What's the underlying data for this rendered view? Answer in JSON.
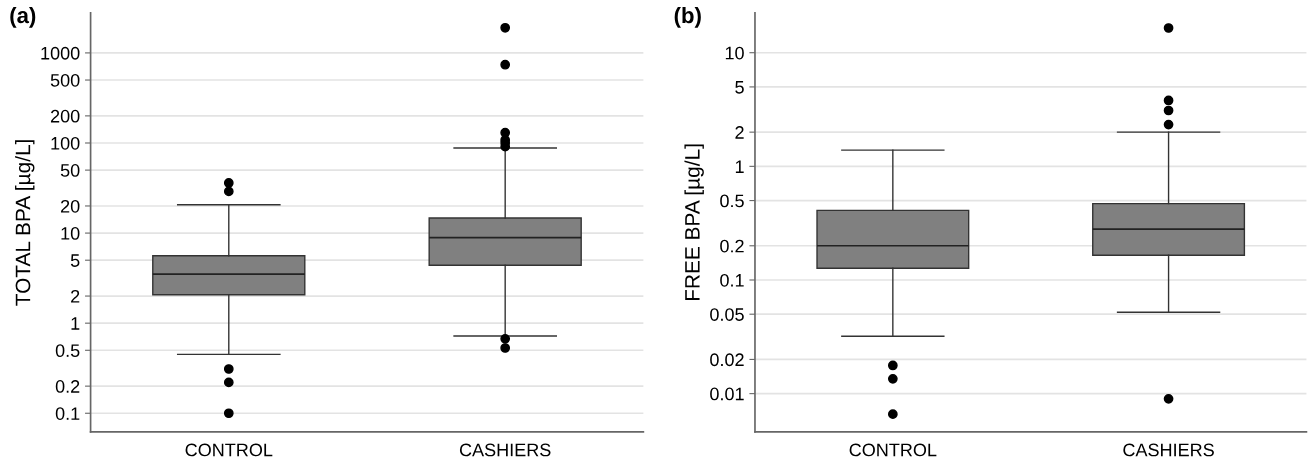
{
  "chart_data": [
    {
      "type": "box",
      "title": "(a)",
      "ylabel": "TOTAL BPA [µg/L]",
      "categories": [
        "CONTROL",
        "CASHIERS"
      ],
      "color": "#808080",
      "log": true,
      "grid": "y",
      "ylim": [
        0.062,
        2780
      ],
      "yticks": [
        0.1,
        0.2,
        0.5,
        1,
        2,
        5,
        10,
        20,
        50,
        100,
        200,
        500,
        1000
      ],
      "boxes": [
        {
          "low": 0.45,
          "q1": 2.07,
          "median": 3.5,
          "q3": 5.6,
          "high": 20.6,
          "outliers": [
            36,
            29,
            0.31,
            0.22,
            0.1
          ]
        },
        {
          "low": 0.72,
          "q1": 4.4,
          "median": 8.9,
          "q3": 14.7,
          "high": 88,
          "outliers": [
            1900,
            740,
            130,
            108,
            100,
            91,
            0.67,
            0.53
          ]
        }
      ]
    },
    {
      "type": "box",
      "title": "(b)",
      "ylabel": "FREE BPA [µg/L]",
      "categories": [
        "CONTROL",
        "CASHIERS"
      ],
      "color": "#808080",
      "log": true,
      "grid": "y",
      "ylim": [
        0.0046,
        22.4
      ],
      "yticks": [
        0.01,
        0.02,
        0.05,
        0.1,
        0.2,
        0.5,
        1,
        2,
        5,
        10
      ],
      "boxes": [
        {
          "low": 0.032,
          "q1": 0.127,
          "median": 0.2,
          "q3": 0.41,
          "high": 1.39,
          "outliers": [
            0.0177,
            0.0135,
            0.0066
          ]
        },
        {
          "low": 0.052,
          "q1": 0.165,
          "median": 0.28,
          "q3": 0.47,
          "high": 2.0,
          "outliers": [
            16.5,
            3.8,
            3.1,
            2.33,
            0.009
          ]
        }
      ]
    }
  ]
}
